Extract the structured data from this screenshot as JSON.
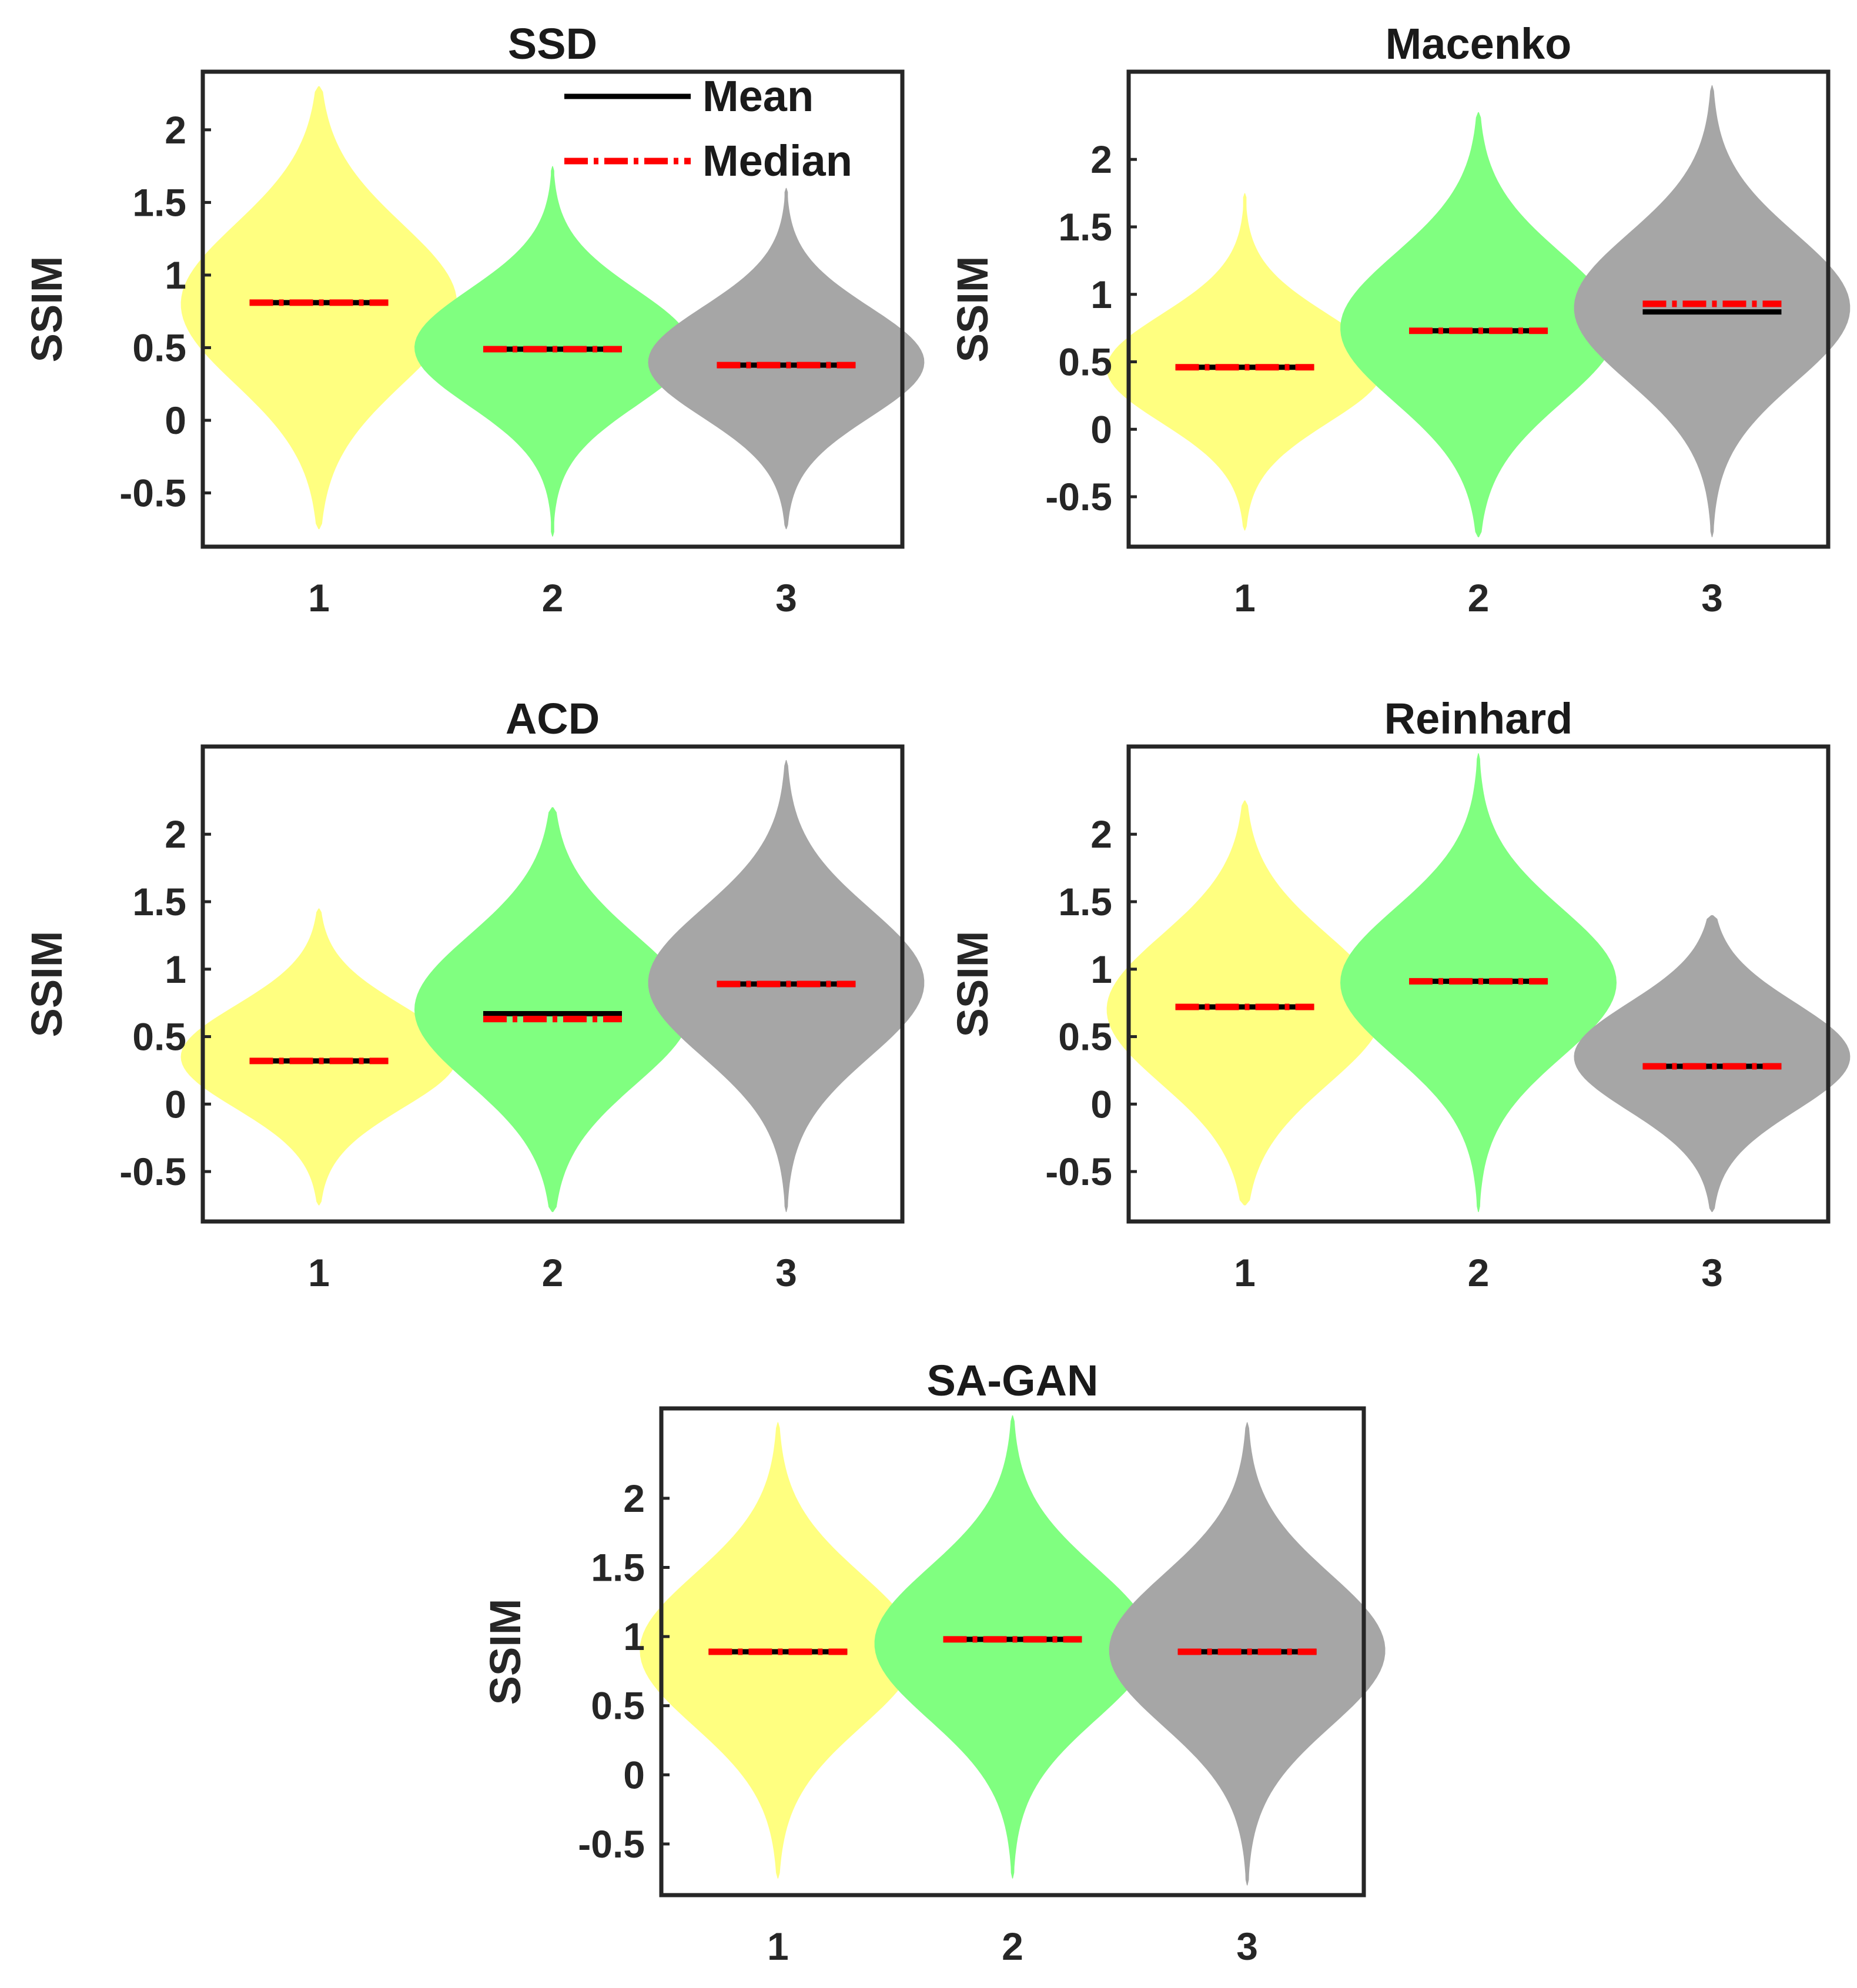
{
  "colors": {
    "group1": "#FFFF80",
    "group2": "#80FF80",
    "group3": "#A6A6A6",
    "mean": "#000000",
    "median": "#FF0000",
    "axes": "#262626"
  },
  "chart_data": [
    {
      "type": "violin",
      "title": "SSD",
      "ylabel": "SSIM",
      "categories": [
        "1",
        "2",
        "3"
      ],
      "ylim": [
        -0.87,
        2.4
      ],
      "yticks": [
        -0.5,
        0,
        0.5,
        1,
        1.5,
        2
      ],
      "ytick_labels": [
        "-0.5",
        "0",
        "0.5",
        "1",
        "1.5",
        "2"
      ],
      "violins": [
        {
          "category": "1",
          "mean": 0.81,
          "median": 0.81,
          "ymin": -0.75,
          "ymax": 2.3,
          "center": 0.8,
          "spread": 0.55
        },
        {
          "category": "2",
          "mean": 0.49,
          "median": 0.49,
          "ymin": -0.8,
          "ymax": 1.75,
          "center": 0.5,
          "spread": 0.4
        },
        {
          "category": "3",
          "mean": 0.38,
          "median": 0.38,
          "ymin": -0.75,
          "ymax": 1.6,
          "center": 0.4,
          "spread": 0.38
        }
      ],
      "legend": {
        "position": "top-right",
        "entries": [
          {
            "label": "Mean",
            "style": "solid"
          },
          {
            "label": "Median",
            "style": "dash-dot"
          }
        ]
      }
    },
    {
      "type": "violin",
      "title": "Macenko",
      "ylabel": "SSIM",
      "categories": [
        "1",
        "2",
        "3"
      ],
      "ylim": [
        -0.87,
        2.65
      ],
      "yticks": [
        -0.5,
        0,
        0.5,
        1,
        1.5,
        2
      ],
      "ytick_labels": [
        "-0.5",
        "0",
        "0.5",
        "1",
        "1.5",
        "2"
      ],
      "violins": [
        {
          "category": "1",
          "mean": 0.46,
          "median": 0.46,
          "ymin": -0.75,
          "ymax": 1.75,
          "center": 0.45,
          "spread": 0.4
        },
        {
          "category": "2",
          "mean": 0.73,
          "median": 0.73,
          "ymin": -0.8,
          "ymax": 2.35,
          "center": 0.75,
          "spread": 0.55
        },
        {
          "category": "3",
          "mean": 0.87,
          "median": 0.93,
          "ymin": -0.8,
          "ymax": 2.55,
          "center": 0.9,
          "spread": 0.55
        }
      ]
    },
    {
      "type": "violin",
      "title": "ACD",
      "ylabel": "SSIM",
      "categories": [
        "1",
        "2",
        "3"
      ],
      "ylim": [
        -0.87,
        2.65
      ],
      "yticks": [
        -0.5,
        0,
        0.5,
        1,
        1.5,
        2
      ],
      "ytick_labels": [
        "-0.5",
        "0",
        "0.5",
        "1",
        "1.5",
        "2"
      ],
      "violins": [
        {
          "category": "1",
          "mean": 0.32,
          "median": 0.32,
          "ymin": -0.75,
          "ymax": 1.45,
          "center": 0.35,
          "spread": 0.38
        },
        {
          "category": "2",
          "mean": 0.67,
          "median": 0.63,
          "ymin": -0.8,
          "ymax": 2.2,
          "center": 0.7,
          "spread": 0.55
        },
        {
          "category": "3",
          "mean": 0.89,
          "median": 0.89,
          "ymin": -0.8,
          "ymax": 2.55,
          "center": 0.9,
          "spread": 0.55
        }
      ]
    },
    {
      "type": "violin",
      "title": "Reinhard",
      "ylabel": "SSIM",
      "categories": [
        "1",
        "2",
        "3"
      ],
      "ylim": [
        -0.87,
        2.65
      ],
      "yticks": [
        -0.5,
        0,
        0.5,
        1,
        1.5,
        2
      ],
      "ytick_labels": [
        "-0.5",
        "0",
        "0.5",
        "1",
        "1.5",
        "2"
      ],
      "violins": [
        {
          "category": "1",
          "mean": 0.72,
          "median": 0.72,
          "ymin": -0.75,
          "ymax": 2.25,
          "center": 0.7,
          "spread": 0.55
        },
        {
          "category": "2",
          "mean": 0.91,
          "median": 0.91,
          "ymin": -0.8,
          "ymax": 2.6,
          "center": 0.9,
          "spread": 0.55
        },
        {
          "category": "3",
          "mean": 0.28,
          "median": 0.28,
          "ymin": -0.8,
          "ymax": 1.4,
          "center": 0.35,
          "spread": 0.4
        }
      ]
    },
    {
      "type": "violin",
      "title": "SA-GAN",
      "ylabel": "SSIM",
      "categories": [
        "1",
        "2",
        "3"
      ],
      "ylim": [
        -0.87,
        2.65
      ],
      "yticks": [
        -0.5,
        0,
        0.5,
        1,
        1.5,
        2
      ],
      "ytick_labels": [
        "-0.5",
        "0",
        "0.5",
        "1",
        "1.5",
        "2"
      ],
      "violins": [
        {
          "category": "1",
          "mean": 0.89,
          "median": 0.89,
          "ymin": -0.75,
          "ymax": 2.55,
          "center": 0.9,
          "spread": 0.55
        },
        {
          "category": "2",
          "mean": 0.98,
          "median": 0.98,
          "ymin": -0.75,
          "ymax": 2.6,
          "center": 0.95,
          "spread": 0.55
        },
        {
          "category": "3",
          "mean": 0.89,
          "median": 0.89,
          "ymin": -0.8,
          "ymax": 2.55,
          "center": 0.9,
          "spread": 0.55
        }
      ]
    }
  ]
}
